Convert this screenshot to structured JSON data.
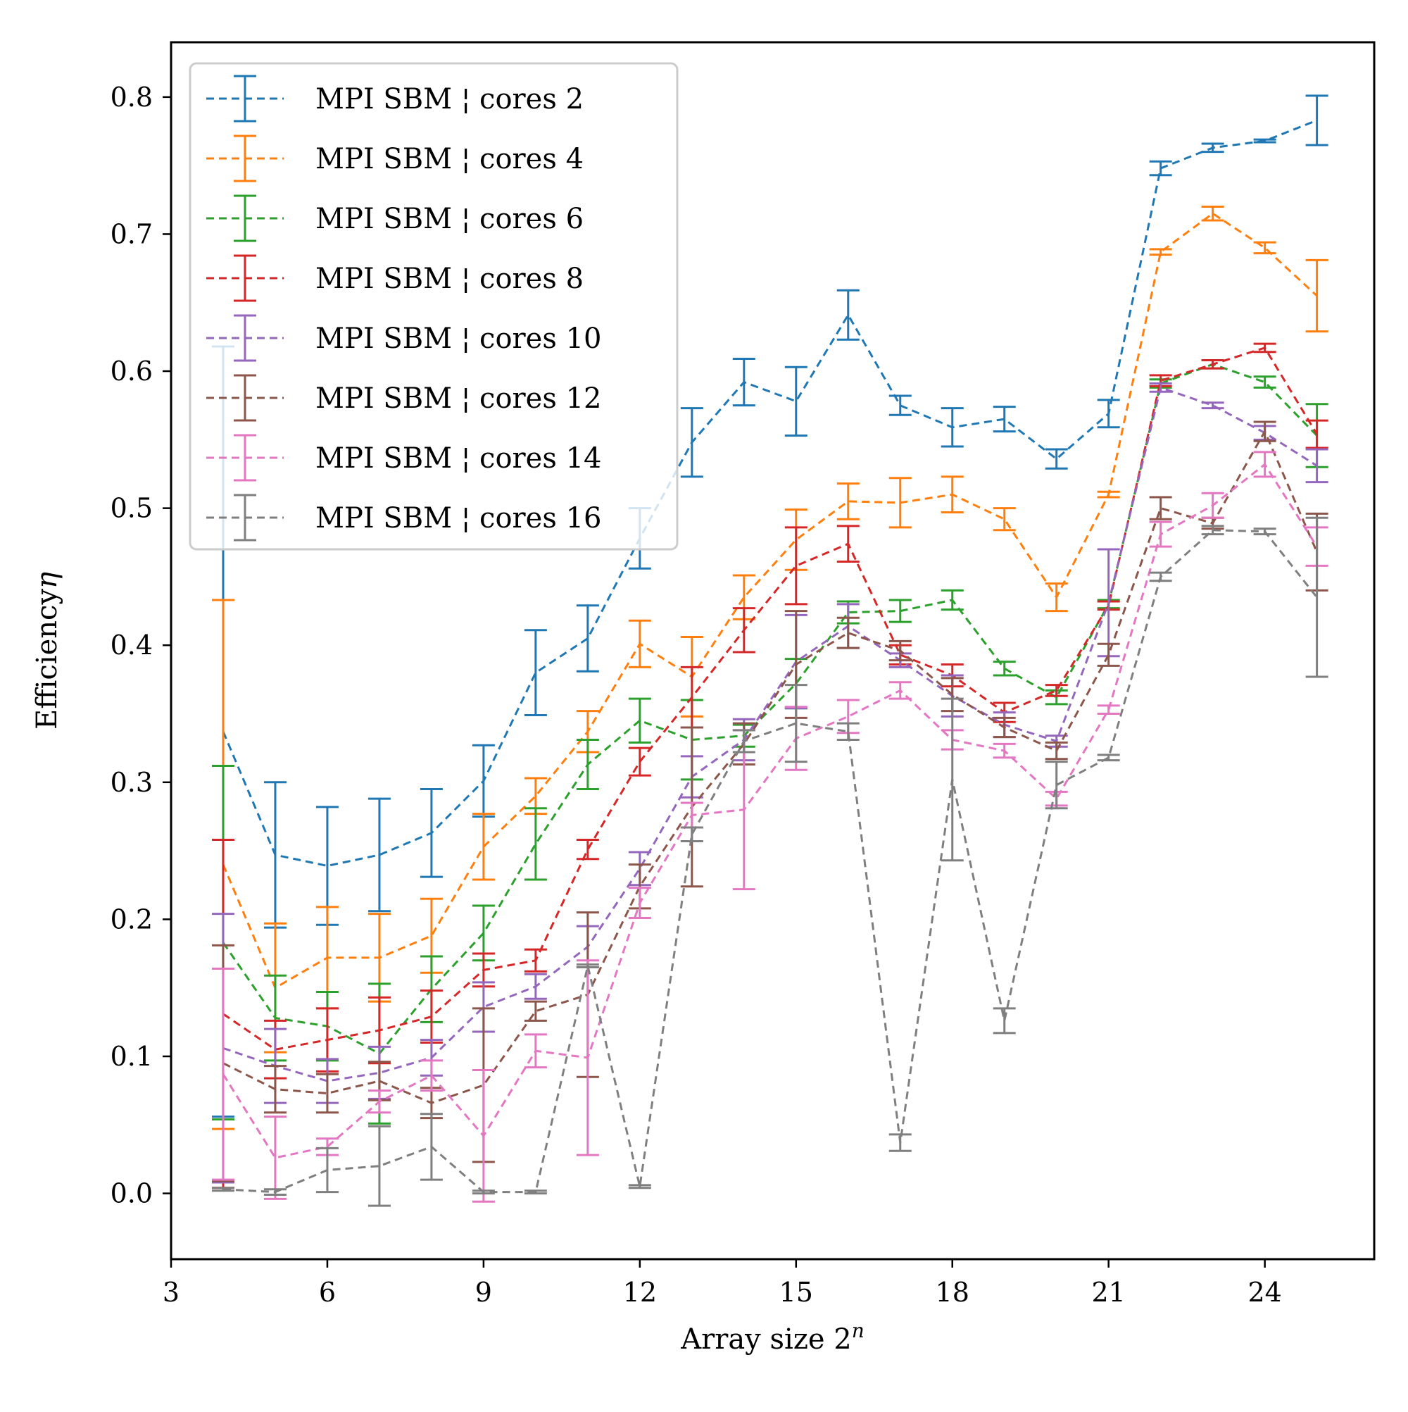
{
  "chart_data": {
    "type": "line",
    "xlabel": "Array size 2",
    "xlabel_sup": "n",
    "ylabel": "Efficiency",
    "ylabel_symbol": "η",
    "xlim": [
      3,
      26.1
    ],
    "ylim": [
      -0.048,
      0.84
    ],
    "xticks": [
      3,
      6,
      9,
      12,
      15,
      18,
      21,
      24
    ],
    "yticks": [
      "0.0",
      "0.1",
      "0.2",
      "0.3",
      "0.4",
      "0.5",
      "0.6",
      "0.7",
      "0.8"
    ],
    "grid": false,
    "legend_position": "top-left",
    "line_style": "dashed",
    "x": [
      4,
      5,
      6,
      7,
      8,
      9,
      10,
      11,
      12,
      13,
      14,
      15,
      16,
      17,
      18,
      19,
      20,
      21,
      22,
      23,
      24,
      25
    ],
    "series": [
      {
        "name": "MPI SBM ¦ cores 2",
        "color": "#1f77b4",
        "values": [
          0.337,
          0.247,
          0.239,
          0.247,
          0.263,
          0.301,
          0.38,
          0.405,
          0.478,
          0.548,
          0.592,
          0.578,
          0.641,
          0.575,
          0.559,
          0.565,
          0.536,
          0.569,
          0.748,
          0.763,
          0.768,
          0.783
        ],
        "errors": [
          0.281,
          0.053,
          0.043,
          0.041,
          0.032,
          0.026,
          0.031,
          0.024,
          0.022,
          0.025,
          0.017,
          0.025,
          0.018,
          0.007,
          0.014,
          0.009,
          0.007,
          0.01,
          0.005,
          0.003,
          0.001,
          0.018
        ]
      },
      {
        "name": "MPI SBM ¦ cores 4",
        "color": "#ff7f0e",
        "values": [
          0.24,
          0.15,
          0.172,
          0.172,
          0.188,
          0.253,
          0.29,
          0.337,
          0.401,
          0.377,
          0.435,
          0.477,
          0.505,
          0.504,
          0.51,
          0.492,
          0.435,
          0.51,
          0.687,
          0.715,
          0.69,
          0.655
        ],
        "errors": [
          0.193,
          0.047,
          0.037,
          0.032,
          0.027,
          0.024,
          0.013,
          0.015,
          0.017,
          0.029,
          0.016,
          0.022,
          0.013,
          0.018,
          0.013,
          0.008,
          0.01,
          0.002,
          0.002,
          0.005,
          0.004,
          0.026
        ]
      },
      {
        "name": "MPI SBM ¦ cores 6",
        "color": "#2ca02c",
        "values": [
          0.183,
          0.128,
          0.122,
          0.102,
          0.149,
          0.19,
          0.255,
          0.313,
          0.345,
          0.331,
          0.334,
          0.372,
          0.424,
          0.425,
          0.433,
          0.383,
          0.362,
          0.43,
          0.591,
          0.605,
          0.592,
          0.553
        ],
        "errors": [
          0.129,
          0.031,
          0.025,
          0.051,
          0.024,
          0.02,
          0.026,
          0.018,
          0.016,
          0.029,
          0.008,
          0.018,
          0.008,
          0.008,
          0.007,
          0.005,
          0.005,
          0.003,
          0.003,
          0.003,
          0.004,
          0.023
        ]
      },
      {
        "name": "MPI SBM ¦ cores 8",
        "color": "#d62728",
        "values": [
          0.131,
          0.105,
          0.112,
          0.119,
          0.129,
          0.163,
          0.17,
          0.251,
          0.315,
          0.362,
          0.411,
          0.458,
          0.474,
          0.393,
          0.378,
          0.351,
          0.367,
          0.429,
          0.593,
          0.605,
          0.617,
          0.554
        ],
        "errors": [
          0.127,
          0.021,
          0.023,
          0.024,
          0.019,
          0.012,
          0.008,
          0.007,
          0.01,
          0.022,
          0.016,
          0.028,
          0.013,
          0.007,
          0.008,
          0.007,
          0.004,
          0.003,
          0.004,
          0.003,
          0.003,
          0.01
        ]
      },
      {
        "name": "MPI SBM ¦ cores 10",
        "color": "#9467bd",
        "values": [
          0.106,
          0.093,
          0.082,
          0.088,
          0.099,
          0.136,
          0.151,
          0.18,
          0.237,
          0.304,
          0.331,
          0.388,
          0.414,
          0.389,
          0.363,
          0.342,
          0.33,
          0.431,
          0.588,
          0.575,
          0.555,
          0.531
        ],
        "errors": [
          0.098,
          0.027,
          0.016,
          0.019,
          0.013,
          0.018,
          0.009,
          0.015,
          0.012,
          0.015,
          0.015,
          0.034,
          0.016,
          0.005,
          0.015,
          0.009,
          0.004,
          0.039,
          0.003,
          0.002,
          0.005,
          0.012
        ]
      },
      {
        "name": "MPI SBM ¦ cores 12",
        "color": "#8c564b",
        "values": [
          0.095,
          0.076,
          0.073,
          0.082,
          0.066,
          0.079,
          0.133,
          0.145,
          0.224,
          0.282,
          0.328,
          0.386,
          0.409,
          0.396,
          0.364,
          0.34,
          0.323,
          0.393,
          0.5,
          0.489,
          0.556,
          0.468
        ],
        "errors": [
          0.086,
          0.017,
          0.014,
          0.014,
          0.011,
          0.056,
          0.007,
          0.06,
          0.016,
          0.058,
          0.015,
          0.039,
          0.011,
          0.007,
          0.012,
          0.007,
          0.006,
          0.008,
          0.008,
          0.004,
          0.007,
          0.028
        ]
      },
      {
        "name": "MPI SBM ¦ cores 14",
        "color": "#e377c2",
        "values": [
          0.087,
          0.026,
          0.034,
          0.067,
          0.086,
          0.042,
          0.104,
          0.099,
          0.212,
          0.276,
          0.28,
          0.332,
          0.348,
          0.367,
          0.331,
          0.323,
          0.288,
          0.353,
          0.481,
          0.502,
          0.532,
          0.472
        ],
        "errors": [
          0.077,
          0.03,
          0.006,
          0.008,
          0.011,
          0.048,
          0.012,
          0.071,
          0.011,
          0.009,
          0.058,
          0.023,
          0.012,
          0.006,
          0.007,
          0.005,
          0.005,
          0.003,
          0.009,
          0.009,
          0.009,
          0.014
        ]
      },
      {
        "name": "MPI SBM ¦ cores 16",
        "color": "#7f7f7f",
        "values": [
          0.003,
          0.001,
          0.017,
          0.02,
          0.034,
          0.001,
          0.001,
          0.166,
          0.005,
          0.262,
          0.33,
          0.343,
          0.337,
          0.037,
          0.302,
          0.126,
          0.298,
          0.318,
          0.45,
          0.484,
          0.483,
          0.435
        ],
        "errors": [
          0.001,
          0.002,
          0.016,
          0.029,
          0.024,
          0.001,
          0.001,
          0.001,
          0.001,
          0.005,
          0.008,
          0.028,
          0.006,
          0.006,
          0.059,
          0.009,
          0.017,
          0.002,
          0.003,
          0.003,
          0.002,
          0.058
        ]
      }
    ]
  }
}
